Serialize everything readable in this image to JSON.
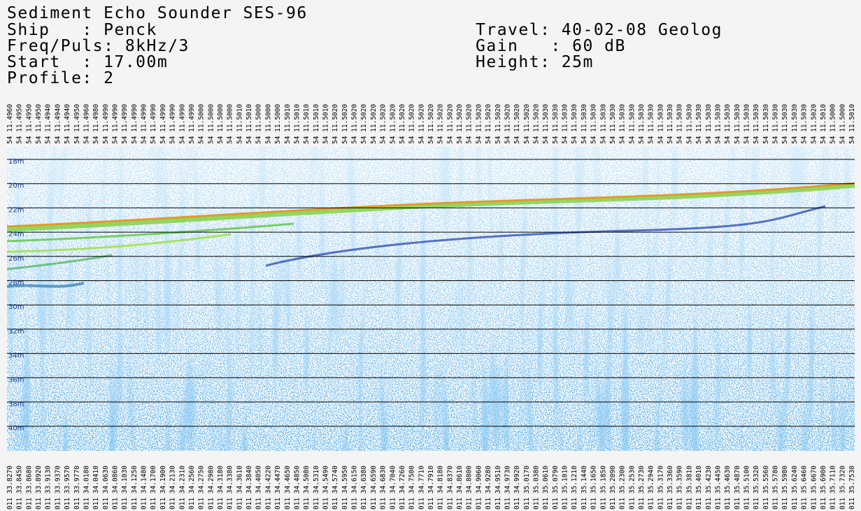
{
  "header": {
    "title": "Sediment Echo Sounder SES-96",
    "ship": "Ship   : Penck",
    "travel": "Travel: 40-02-08 Geolog",
    "freq": "Freq/Puls: 8kHz/3",
    "gain": "Gain   : 60 dB",
    "start": "Start  : 17.00m",
    "height": "Height: 25m",
    "profile": "Profile: 2"
  },
  "depth_labels": [
    "18m",
    "20m",
    "22m",
    "24m",
    "26m",
    "28m",
    "30m",
    "32m",
    "34m",
    "36m",
    "38m",
    "40m"
  ],
  "top_labels": [
    "54 11.4960",
    "54 11.4950",
    "54 11.4950",
    "54 11.4950",
    "54 11.4940",
    "54 11.4940",
    "54 11.4940",
    "54 11.4950",
    "54 11.4960",
    "54 11.4980",
    "54 11.4990",
    "54 11.4990",
    "54 11.4990",
    "54 11.4990",
    "54 11.4990",
    "54 11.4990",
    "54 11.4990",
    "54 11.4990",
    "54 11.4990",
    "54 11.4990",
    "54 11.5000",
    "54 11.5000",
    "54 11.5000",
    "54 11.5000",
    "54 11.5010",
    "54 11.5010",
    "54 11.5000",
    "54 11.5000",
    "54 11.5000",
    "54 11.5010",
    "54 11.5010",
    "54 11.5010",
    "54 11.5010",
    "54 11.5010",
    "54 11.5020",
    "54 11.5020",
    "54 11.5020",
    "54 11.5020",
    "54 11.5020",
    "54 11.5020",
    "54 11.5020",
    "54 11.5020",
    "54 11.5020",
    "54 11.5020",
    "54 11.5020",
    "54 11.5020",
    "54 11.5020",
    "54 11.5020",
    "54 11.5020",
    "54 11.5020",
    "54 11.5020",
    "54 11.5020",
    "54 11.5020",
    "54 11.5020",
    "54 11.5020",
    "54 11.5020",
    "54 11.5030",
    "54 11.5030",
    "54 11.5030",
    "54 11.5030",
    "54 11.5030",
    "54 11.5030",
    "54 11.5030",
    "54 11.5030",
    "54 11.5030",
    "54 11.5030",
    "54 11.5030",
    "54 11.5030",
    "54 11.5030",
    "54 11.5030",
    "54 11.5030",
    "54 11.5030",
    "54 11.5030",
    "54 11.5030",
    "54 11.5030",
    "54 11.5030",
    "54 11.5030",
    "54 11.5030",
    "54 11.5030",
    "54 11.5030",
    "54 11.5030",
    "54 11.5030",
    "54 11.5030",
    "54 11.5030",
    "54 11.5020",
    "54 11.5010",
    "54 11.5000",
    "54 11.5000",
    "54 11.5010"
  ],
  "bottom_labels": [
    "011 33.8270",
    "011 33.8450",
    "011 33.8680",
    "011 33.8920",
    "011 33.9130",
    "011 33.9370",
    "011 33.9570",
    "011 33.9770",
    "011 34.0180",
    "011 34.0410",
    "011 34.0630",
    "011 34.0860",
    "011 34.1030",
    "011 34.1250",
    "011 34.1480",
    "011 34.1700",
    "011 34.1900",
    "011 34.2130",
    "011 34.2310",
    "011 34.2560",
    "011 34.2750",
    "011 34.2980",
    "011 34.3180",
    "011 34.3380",
    "011 34.3610",
    "011 34.3840",
    "011 34.4050",
    "011 34.4220",
    "011 34.4470",
    "011 34.4650",
    "011 34.4850",
    "011 34.5080",
    "011 34.5310",
    "011 34.5490",
    "011 34.5740",
    "011 34.5950",
    "011 34.6150",
    "011 34.6380",
    "011 34.6590",
    "011 34.6830",
    "011 34.7040",
    "011 34.7260",
    "011 34.7500",
    "011 34.7710",
    "011 34.7910",
    "011 34.8180",
    "011 34.8370",
    "011 34.8610",
    "011 34.8800",
    "011 34.9060",
    "011 34.9280",
    "011 34.9510",
    "011 34.9730",
    "011 34.9920",
    "011 35.0170",
    "011 35.0380",
    "011 35.0610",
    "011 35.0790",
    "011 35.1010",
    "011 35.1210",
    "011 35.1440",
    "011 35.1650",
    "011 35.1850",
    "011 35.2090",
    "011 35.2300",
    "011 35.2530",
    "011 35.2730",
    "011 35.2940",
    "011 35.3170",
    "011 35.3360",
    "011 35.3590",
    "011 35.3810",
    "011 35.4010",
    "011 35.4230",
    "011 35.4450",
    "011 35.4630",
    "011 35.4870",
    "011 35.5100",
    "011 35.5320",
    "011 35.5560",
    "011 35.5780",
    "011 35.5980",
    "011 35.6240",
    "011 35.6460",
    "011 35.6670",
    "011 35.6900",
    "011 35.7110",
    "011 35.7320",
    "011 35.7530"
  ]
}
